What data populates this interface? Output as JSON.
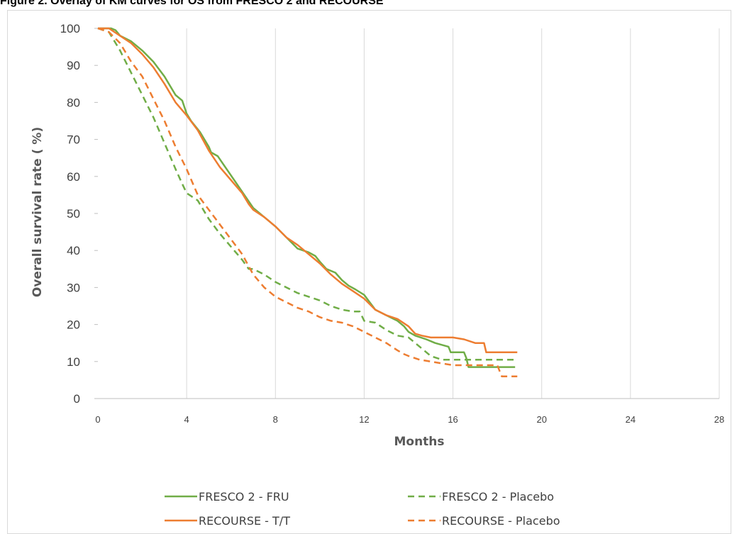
{
  "figure_title": "Figure 2. Overlay of KM curves for OS from FRESCO 2 and RECOURSE",
  "colors": {
    "green": "#70ad47",
    "orange": "#ed7d31",
    "grid": "#d9d9d9",
    "axis": "#bfbfbf"
  },
  "chart_data": {
    "type": "line",
    "title": "",
    "xlabel": "Months",
    "ylabel": "Overall survival rate ( %)",
    "xlim": [
      0,
      28
    ],
    "ylim": [
      0,
      100
    ],
    "xticks": [
      0,
      4,
      8,
      12,
      16,
      20,
      24,
      28
    ],
    "yticks": [
      0,
      10,
      20,
      30,
      40,
      50,
      60,
      70,
      80,
      90,
      100
    ],
    "grid": "vertical",
    "legend": "bottom",
    "series": [
      {
        "name": "FRESCO 2 - FRU",
        "color": "#70ad47",
        "dash": "solid",
        "x": [
          0,
          0.6,
          0.8,
          1.0,
          1.5,
          2.0,
          2.5,
          3.0,
          3.5,
          3.8,
          4.0,
          4.2,
          4.6,
          5.0,
          5.1,
          5.4,
          5.8,
          6.2,
          6.6,
          7.0,
          7.5,
          8.0,
          8.5,
          9.0,
          9.5,
          9.8,
          10.0,
          10.3,
          10.7,
          11.0,
          11.3,
          11.6,
          12.0,
          12.5,
          13.0,
          13.5,
          13.8,
          14.0,
          14.3,
          14.8,
          15.2,
          15.5,
          15.8,
          15.9,
          16.2,
          16.5,
          16.6,
          16.7,
          17.0,
          17.5,
          18.0,
          18.5,
          18.8
        ],
        "y": [
          100,
          100,
          99.5,
          98,
          96.5,
          94,
          91,
          87,
          82,
          80.5,
          77,
          75,
          72,
          68,
          66.5,
          65.5,
          62,
          58.5,
          55,
          51.5,
          49,
          46.5,
          43.5,
          40.5,
          39.5,
          38.5,
          37,
          35,
          34,
          32,
          30.5,
          29.5,
          28,
          24,
          22.5,
          21,
          19.5,
          18,
          17,
          16,
          15,
          14.5,
          14,
          12.5,
          12.5,
          12.5,
          11,
          8.5,
          8.5,
          8.5,
          8.5,
          8.5,
          8.5
        ]
      },
      {
        "name": "FRESCO 2 - Placebo",
        "color": "#70ad47",
        "dash": "dashed",
        "x": [
          0,
          0.5,
          1.0,
          1.5,
          2.0,
          2.5,
          3.0,
          3.5,
          3.8,
          4.0,
          4.5,
          5.0,
          5.5,
          6.0,
          6.5,
          6.8,
          7.0,
          7.5,
          8.0,
          8.5,
          9.0,
          9.5,
          10.0,
          10.5,
          11.0,
          11.5,
          11.8,
          12.0,
          12.5,
          13.0,
          13.5,
          14.0,
          14.3,
          14.6,
          15.0,
          15.5,
          16.0,
          16.5,
          17.0,
          17.5,
          18.0,
          18.5,
          18.8
        ],
        "y": [
          100,
          99,
          94,
          88,
          82,
          76,
          69,
          62,
          58,
          55.5,
          53.5,
          48.5,
          44.5,
          41,
          37.5,
          35,
          35,
          33.5,
          31.5,
          30,
          28.5,
          27.5,
          26.5,
          25,
          24,
          23.5,
          23.5,
          21,
          20.5,
          18.5,
          17,
          16.5,
          15,
          13.5,
          11.5,
          10.5,
          10.5,
          10.5,
          10.5,
          10.5,
          10.5,
          10.5,
          10.5
        ]
      },
      {
        "name": "RECOURSE - T/T",
        "color": "#ed7d31",
        "dash": "solid",
        "x": [
          0,
          0.5,
          1.0,
          1.5,
          2.0,
          2.5,
          3.0,
          3.5,
          4.0,
          4.5,
          5.0,
          5.5,
          6.0,
          6.5,
          6.8,
          7.0,
          7.5,
          8.0,
          8.5,
          9.0,
          9.5,
          10.0,
          10.5,
          11.0,
          11.5,
          12.0,
          12.5,
          13.0,
          13.5,
          14.0,
          14.3,
          14.6,
          15.0,
          15.5,
          16.0,
          16.5,
          17.0,
          17.4,
          17.5,
          18.0,
          18.5,
          18.9
        ],
        "y": [
          100,
          100,
          98,
          96,
          93,
          89.5,
          85,
          80,
          76.5,
          72.5,
          67,
          62.5,
          59,
          55.5,
          52.5,
          51,
          49,
          46.5,
          43.5,
          41.5,
          39,
          36.5,
          33.5,
          31,
          29,
          27,
          24,
          22.5,
          21.5,
          19.5,
          17.5,
          17,
          16.5,
          16.5,
          16.5,
          16,
          15,
          15,
          12.5,
          12.5,
          12.5,
          12.5
        ]
      },
      {
        "name": "RECOURSE - Placebo",
        "color": "#ed7d31",
        "dash": "dashed",
        "x": [
          0,
          0.5,
          1.0,
          1.5,
          2.0,
          2.5,
          3.0,
          3.5,
          4.0,
          4.5,
          5.0,
          5.5,
          6.0,
          6.5,
          7.0,
          7.5,
          8.0,
          8.5,
          9.0,
          9.5,
          10.0,
          10.5,
          11.0,
          11.5,
          12.0,
          12.5,
          13.0,
          13.5,
          13.8,
          14.0,
          14.5,
          15.0,
          15.5,
          16.0,
          16.5,
          17.0,
          17.5,
          18.0,
          18.2,
          18.5,
          18.9
        ],
        "y": [
          100,
          99,
          96,
          91,
          87,
          81,
          75,
          68,
          62,
          55,
          51,
          47,
          43,
          39,
          33.5,
          30,
          27.5,
          26,
          24.5,
          23.5,
          22,
          21,
          20.5,
          19.5,
          18,
          16.5,
          15,
          13,
          12,
          11.5,
          10.5,
          10,
          9.5,
          9,
          9,
          9,
          9,
          9,
          6,
          6,
          6
        ]
      }
    ]
  }
}
